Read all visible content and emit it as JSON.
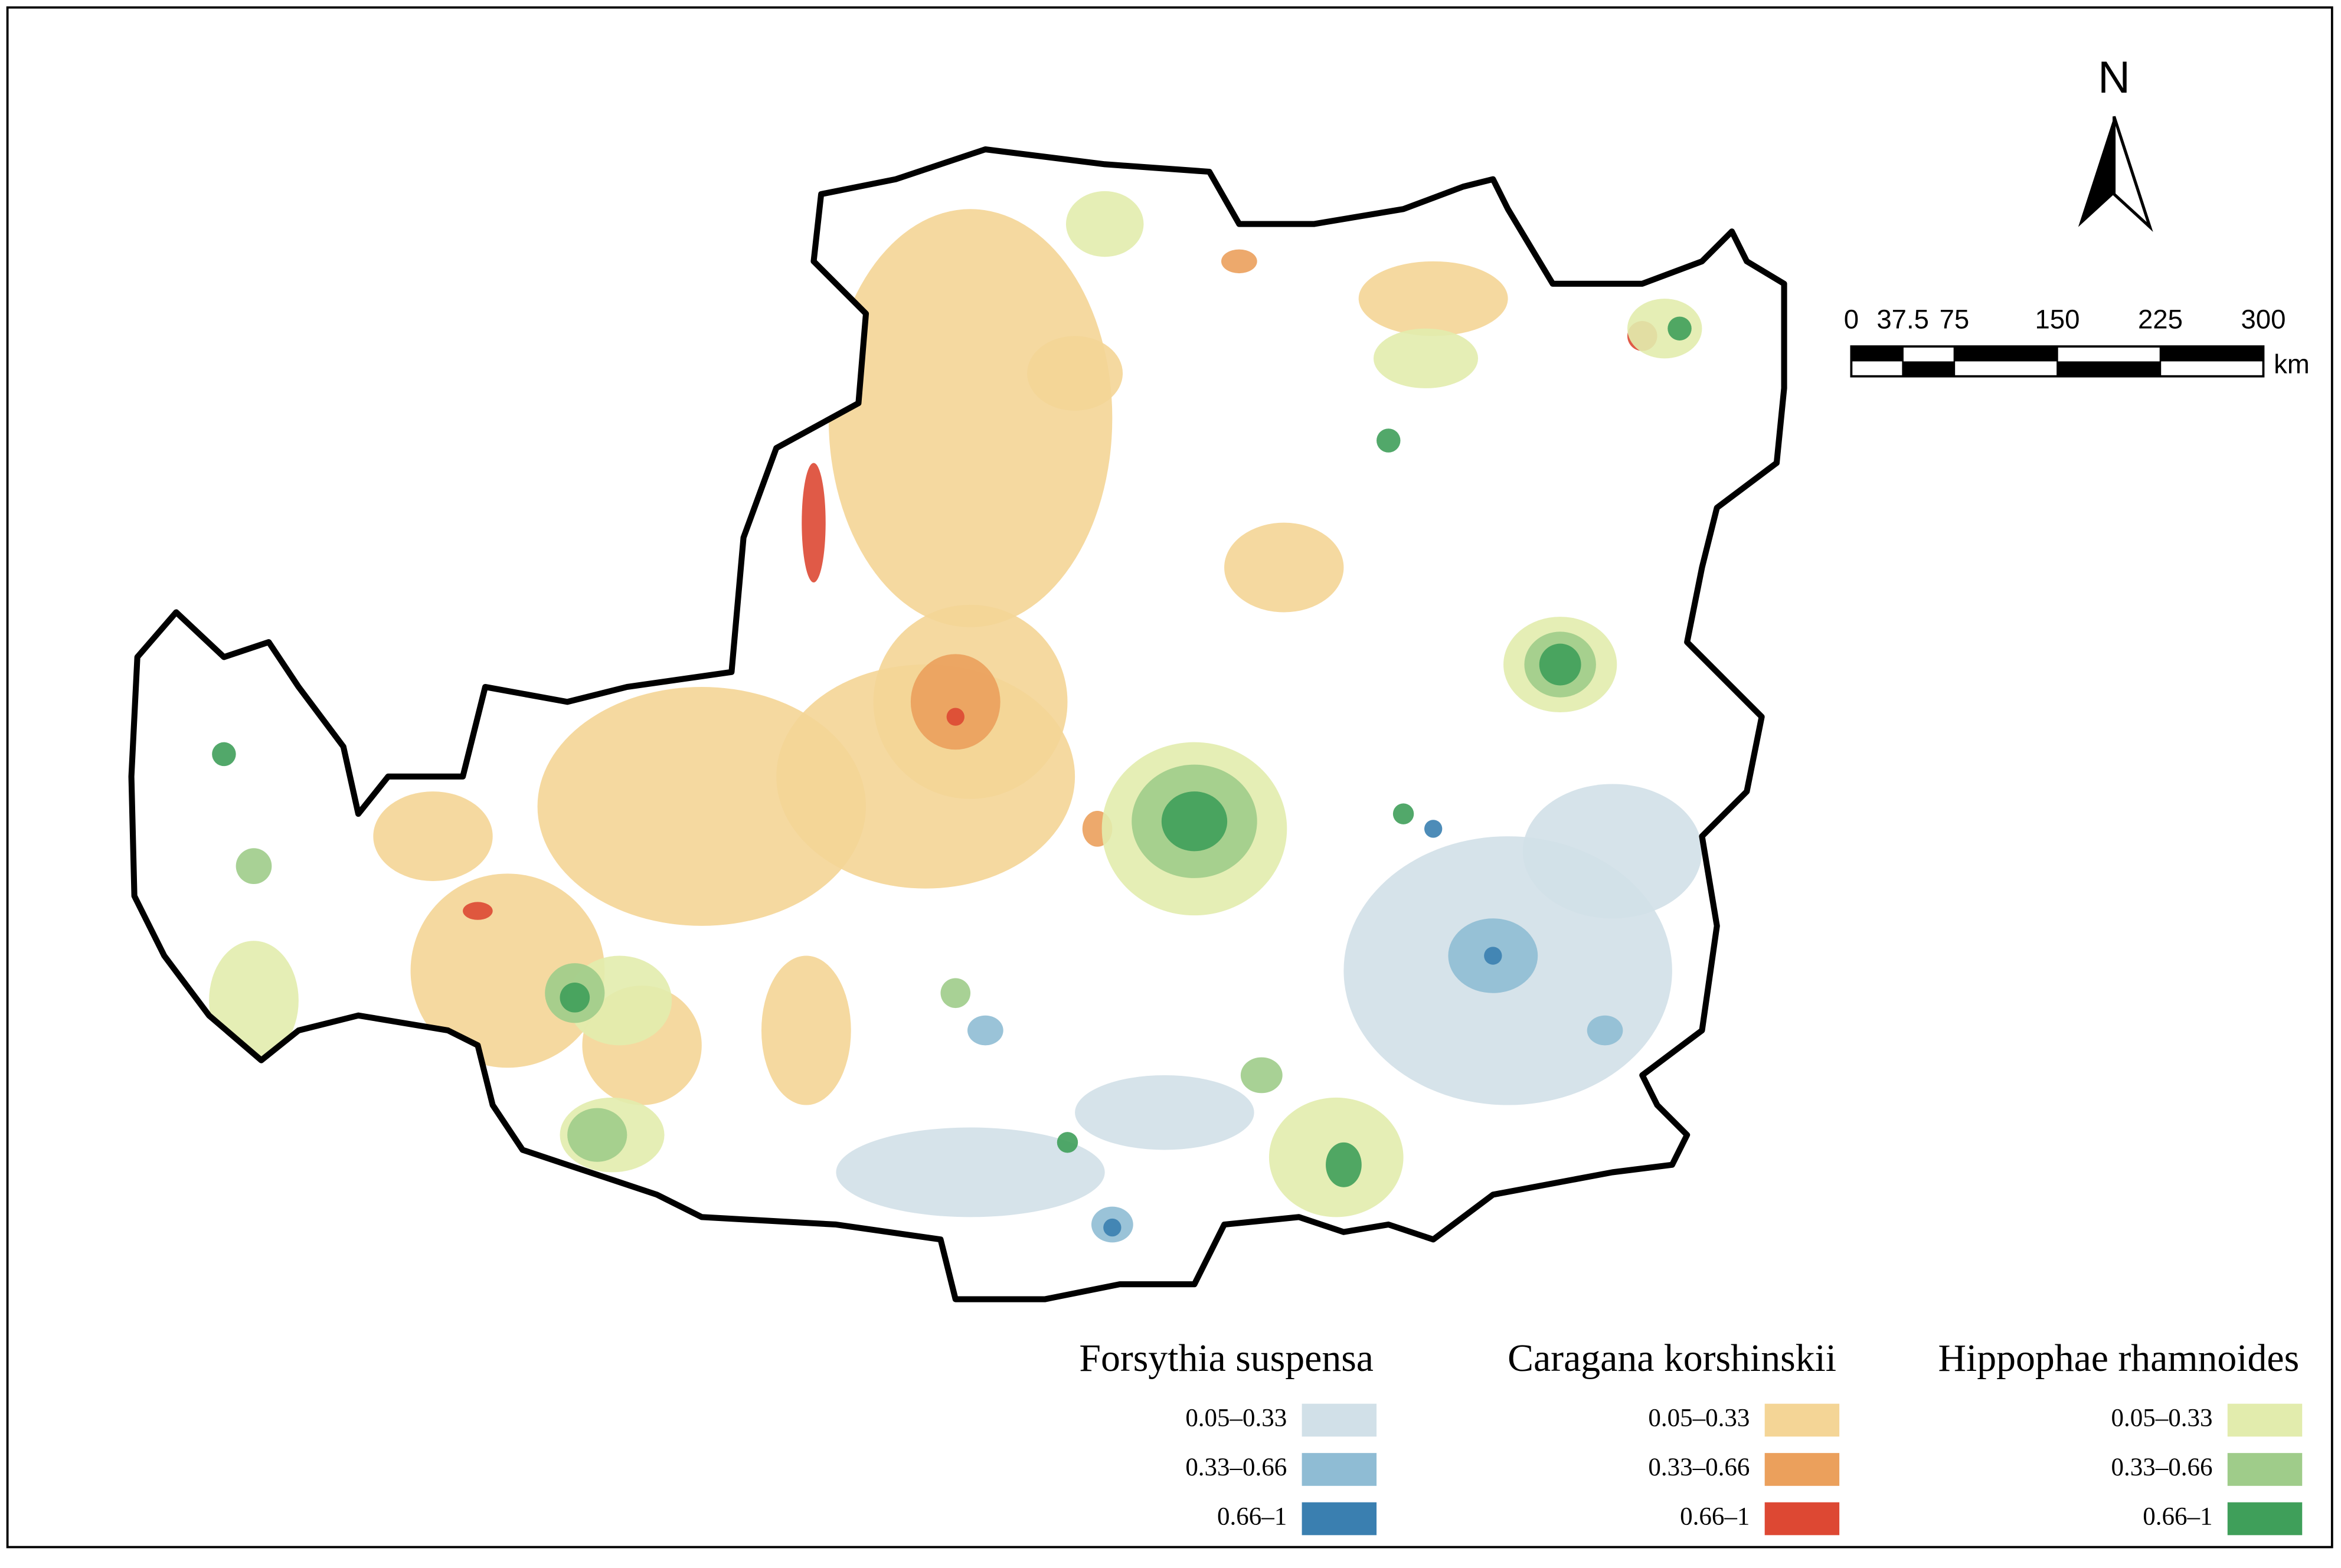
{
  "north_arrow": {
    "label": "N"
  },
  "scale_bar": {
    "ticks": [
      0,
      37.5,
      75,
      150,
      225,
      300
    ],
    "unit": "km"
  },
  "legend": {
    "groups": [
      {
        "title": "Forsythia suspensa",
        "items": [
          {
            "label": "0.05–0.33",
            "color": "#d1e0e8"
          },
          {
            "label": "0.33–0.66",
            "color": "#8fbcd4"
          },
          {
            "label": "0.66–1",
            "color": "#3a7fb0"
          }
        ]
      },
      {
        "title": "Caragana korshinskii",
        "items": [
          {
            "label": "0.05–0.33",
            "color": "#f4d596"
          },
          {
            "label": "0.33–0.66",
            "color": "#eba05c"
          },
          {
            "label": "0.66–1",
            "color": "#dd4833"
          }
        ]
      },
      {
        "title": "Hippophae rhamnoides",
        "items": [
          {
            "label": "0.05–0.33",
            "color": "#e2ecad"
          },
          {
            "label": "0.33–0.66",
            "color": "#9fcc8a"
          },
          {
            "label": "0.66–1",
            "color": "#3f9f5a"
          }
        ]
      }
    ]
  }
}
